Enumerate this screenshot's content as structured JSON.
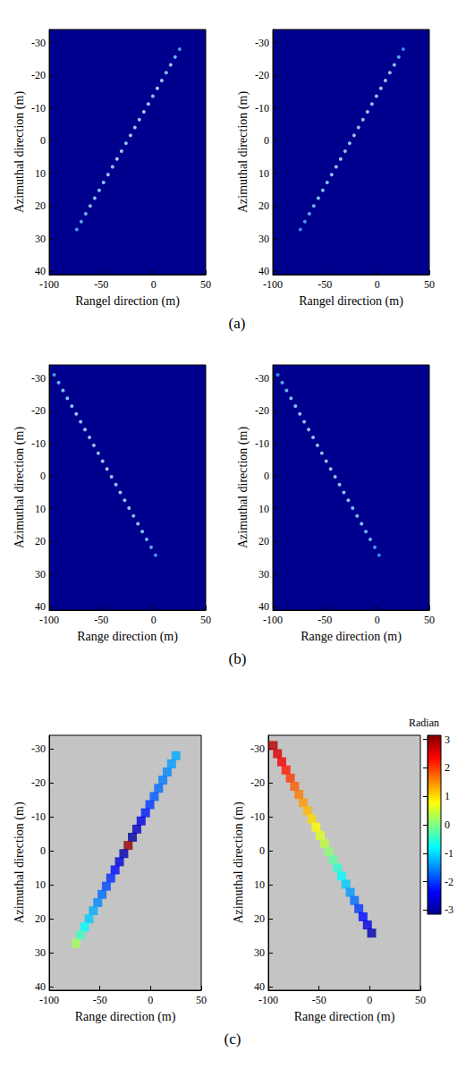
{
  "chart_data": [
    {
      "type": "scatter",
      "label": "(a)",
      "panels": [
        {
          "type": "scatter",
          "xlabel": "Rangel direction (m)",
          "ylabel": "Azimuthal direction (m)",
          "xlim": [
            -100,
            50
          ],
          "xticks": [
            -100,
            -50,
            0,
            50
          ],
          "ylim": [
            -34,
            41
          ],
          "yticks": [
            -30,
            -20,
            -10,
            0,
            10,
            20,
            30,
            40
          ],
          "zlim": [
            0,
            1
          ],
          "points": [
            [
              25,
              -28,
              0.6
            ],
            [
              20.7,
              -25.6,
              0.7
            ],
            [
              16.4,
              -23.2,
              0.8
            ],
            [
              12.1,
              -20.8,
              0.75
            ],
            [
              7.9,
              -18.4,
              0.85
            ],
            [
              3.6,
              -16,
              0.9
            ],
            [
              -0.7,
              -13.6,
              0.8
            ],
            [
              -5,
              -11.2,
              0.85
            ],
            [
              -9.3,
              -8.8,
              0.9
            ],
            [
              -13.6,
              -6.4,
              0.8
            ],
            [
              -17.9,
              -4,
              0.85
            ],
            [
              -22.1,
              -1.6,
              0.9
            ],
            [
              -26.4,
              0.8,
              0.8
            ],
            [
              -30.7,
              3.2,
              0.85
            ],
            [
              -35,
              5.6,
              0.9
            ],
            [
              -39.3,
              8,
              0.8
            ],
            [
              -43.6,
              10.4,
              0.85
            ],
            [
              -47.9,
              12.8,
              0.8
            ],
            [
              -52.1,
              15.2,
              0.75
            ],
            [
              -56.4,
              17.6,
              0.8
            ],
            [
              -60.7,
              20,
              0.75
            ],
            [
              -65,
              22.4,
              0.7
            ],
            [
              -69.3,
              24.8,
              0.65
            ],
            [
              -73.6,
              27.2,
              0.6
            ]
          ]
        },
        {
          "type": "scatter",
          "xlabel": "Rangel direction (m)",
          "ylabel": "Azimuthal direction (m)",
          "xlim": [
            -100,
            50
          ],
          "xticks": [
            -100,
            -50,
            0,
            50
          ],
          "ylim": [
            -34,
            41
          ],
          "yticks": [
            -30,
            -20,
            -10,
            0,
            10,
            20,
            30,
            40
          ],
          "zlim": [
            0,
            1
          ],
          "points": [
            [
              25,
              -28,
              0.55
            ],
            [
              20.7,
              -25.6,
              0.65
            ],
            [
              16.4,
              -23.2,
              0.75
            ],
            [
              12.1,
              -20.8,
              0.8
            ],
            [
              7.9,
              -18.4,
              0.8
            ],
            [
              3.6,
              -16,
              0.85
            ],
            [
              -0.7,
              -13.6,
              0.8
            ],
            [
              -5,
              -11.2,
              0.8
            ],
            [
              -9.3,
              -8.8,
              0.85
            ],
            [
              -13.6,
              -6.4,
              0.8
            ],
            [
              -17.9,
              -4,
              0.8
            ],
            [
              -22.1,
              -1.6,
              0.85
            ],
            [
              -26.4,
              0.8,
              0.8
            ],
            [
              -30.7,
              3.2,
              0.8
            ],
            [
              -35,
              5.6,
              0.85
            ],
            [
              -39.3,
              8,
              0.8
            ],
            [
              -43.6,
              10.4,
              0.8
            ],
            [
              -47.9,
              12.8,
              0.75
            ],
            [
              -52.1,
              15.2,
              0.75
            ],
            [
              -56.4,
              17.6,
              0.75
            ],
            [
              -60.7,
              20,
              0.7
            ],
            [
              -65,
              22.4,
              0.65
            ],
            [
              -69.3,
              24.8,
              0.6
            ],
            [
              -73.6,
              27.2,
              0.55
            ]
          ]
        }
      ]
    },
    {
      "type": "scatter",
      "label": "(b)",
      "panels": [
        {
          "type": "scatter",
          "xlabel": "Range direction (m)",
          "ylabel": "Azimuthal direction (m)",
          "xlim": [
            -100,
            50
          ],
          "xticks": [
            -100,
            -50,
            0,
            50
          ],
          "ylim": [
            -34,
            41
          ],
          "yticks": [
            -30,
            -20,
            -10,
            0,
            10,
            20,
            30,
            40
          ],
          "zlim": [
            0,
            1
          ],
          "points": [
            [
              -95.2,
              -31,
              0.6
            ],
            [
              -91,
              -28.6,
              0.7
            ],
            [
              -86.8,
              -26.2,
              0.75
            ],
            [
              -82.6,
              -23.8,
              0.8
            ],
            [
              -78.3,
              -21.4,
              0.8
            ],
            [
              -74.1,
              -19,
              0.85
            ],
            [
              -69.9,
              -16.6,
              0.8
            ],
            [
              -65.7,
              -14.2,
              0.85
            ],
            [
              -61.4,
              -11.8,
              0.8
            ],
            [
              -57.2,
              -9.4,
              0.85
            ],
            [
              -53,
              -7,
              0.8
            ],
            [
              -48.8,
              -4.6,
              0.85
            ],
            [
              -44.6,
              -2.2,
              0.9
            ],
            [
              -40.3,
              0.2,
              0.85
            ],
            [
              -36.1,
              2.6,
              0.8
            ],
            [
              -31.9,
              5,
              0.85
            ],
            [
              -27.7,
              7.4,
              0.8
            ],
            [
              -23.5,
              9.8,
              0.8
            ],
            [
              -19.2,
              12.2,
              0.75
            ],
            [
              -15,
              14.6,
              0.8
            ],
            [
              -10.8,
              17,
              0.75
            ],
            [
              -6.6,
              19.4,
              0.7
            ],
            [
              -2.3,
              21.8,
              0.65
            ],
            [
              1.9,
              24.2,
              0.6
            ]
          ]
        },
        {
          "type": "scatter",
          "xlabel": "Range direction (m)",
          "ylabel": "Azimuthal direction (m)",
          "xlim": [
            -100,
            50
          ],
          "xticks": [
            -100,
            -50,
            0,
            50
          ],
          "ylim": [
            -34,
            41
          ],
          "yticks": [
            -30,
            -20,
            -10,
            0,
            10,
            20,
            30,
            40
          ],
          "zlim": [
            0,
            1
          ],
          "points": [
            [
              -95.2,
              -31,
              0.55
            ],
            [
              -91,
              -28.6,
              0.65
            ],
            [
              -86.8,
              -26.2,
              0.7
            ],
            [
              -82.6,
              -23.8,
              0.75
            ],
            [
              -78.3,
              -21.4,
              0.8
            ],
            [
              -74.1,
              -19,
              0.8
            ],
            [
              -69.9,
              -16.6,
              0.8
            ],
            [
              -65.7,
              -14.2,
              0.8
            ],
            [
              -61.4,
              -11.8,
              0.8
            ],
            [
              -57.2,
              -9.4,
              0.8
            ],
            [
              -53,
              -7,
              0.8
            ],
            [
              -48.8,
              -4.6,
              0.8
            ],
            [
              -44.6,
              -2.2,
              0.85
            ],
            [
              -40.3,
              0.2,
              0.8
            ],
            [
              -36.1,
              2.6,
              0.8
            ],
            [
              -31.9,
              5,
              0.8
            ],
            [
              -27.7,
              7.4,
              0.8
            ],
            [
              -23.5,
              9.8,
              0.75
            ],
            [
              -19.2,
              12.2,
              0.75
            ],
            [
              -15,
              14.6,
              0.75
            ],
            [
              -10.8,
              17,
              0.7
            ],
            [
              -6.6,
              19.4,
              0.7
            ],
            [
              -2.3,
              21.8,
              0.6
            ],
            [
              1.9,
              24.2,
              0.55
            ]
          ]
        }
      ]
    },
    {
      "type": "scatter",
      "label": "(c)",
      "panels": [
        {
          "type": "scatter",
          "color": "jet",
          "xlabel": "Range direction (m)",
          "ylabel": "Azimuthal direction (m)",
          "xlim": [
            -100,
            50
          ],
          "xticks": [
            -100,
            -50,
            0,
            50
          ],
          "ylim": [
            -34,
            41
          ],
          "yticks": [
            -30,
            -20,
            -10,
            0,
            10,
            20,
            30,
            40
          ],
          "zlim": [
            -3.1416,
            3.1416
          ],
          "points": [
            [
              25,
              -28,
              -1.3
            ],
            [
              20.7,
              -25.6,
              -1.4
            ],
            [
              16.4,
              -23.2,
              -1.5
            ],
            [
              12.1,
              -20.8,
              -1.6
            ],
            [
              7.9,
              -18.4,
              -1.7
            ],
            [
              3.6,
              -16,
              -1.8
            ],
            [
              -0.7,
              -13.6,
              -2.0
            ],
            [
              -5,
              -11.2,
              -2.2
            ],
            [
              -9.3,
              -8.8,
              -2.5
            ],
            [
              -13.6,
              -6.4,
              -2.8
            ],
            [
              -17.9,
              -4,
              -3.0
            ],
            [
              -22.1,
              -1.6,
              3.0
            ],
            [
              -26.4,
              0.8,
              -2.9
            ],
            [
              -30.7,
              3.2,
              -2.6
            ],
            [
              -35,
              5.6,
              -2.3
            ],
            [
              -39.3,
              8,
              -2.1
            ],
            [
              -43.6,
              10.4,
              -1.9
            ],
            [
              -47.9,
              12.8,
              -1.7
            ],
            [
              -52.1,
              15.2,
              -1.5
            ],
            [
              -56.4,
              17.6,
              -1.3
            ],
            [
              -60.7,
              20,
              -1.1
            ],
            [
              -65,
              22.4,
              -0.8
            ],
            [
              -69.3,
              24.8,
              -0.4
            ],
            [
              -73.6,
              27.2,
              0.2
            ]
          ]
        },
        {
          "type": "scatter",
          "color": "jet",
          "xlabel": "Range direction (m)",
          "ylabel": "Azimuthal direction (m)",
          "xlim": [
            -100,
            50
          ],
          "xticks": [
            -100,
            -50,
            0,
            50
          ],
          "ylim": [
            -34,
            41
          ],
          "yticks": [
            -30,
            -20,
            -10,
            0,
            10,
            20,
            30,
            40
          ],
          "zlim": [
            -3.1416,
            3.1416
          ],
          "points": [
            [
              -95.2,
              -31,
              2.8
            ],
            [
              -91,
              -28.6,
              2.6
            ],
            [
              -86.8,
              -26.2,
              2.4
            ],
            [
              -82.6,
              -23.8,
              2.2
            ],
            [
              -78.3,
              -21.4,
              2.0
            ],
            [
              -74.1,
              -19,
              1.8
            ],
            [
              -69.9,
              -16.6,
              1.6
            ],
            [
              -65.7,
              -14.2,
              1.4
            ],
            [
              -61.4,
              -11.8,
              1.2
            ],
            [
              -57.2,
              -9.4,
              1.0
            ],
            [
              -53,
              -7,
              0.8
            ],
            [
              -48.8,
              -4.6,
              0.6
            ],
            [
              -44.6,
              -2.2,
              0.4
            ],
            [
              -40.3,
              0.2,
              0.1
            ],
            [
              -36.1,
              2.6,
              -0.2
            ],
            [
              -31.9,
              5,
              -0.5
            ],
            [
              -27.7,
              7.4,
              -0.8
            ],
            [
              -23.5,
              9.8,
              -1.1
            ],
            [
              -19.2,
              12.2,
              -1.4
            ],
            [
              -15,
              14.6,
              -1.7
            ],
            [
              -10.8,
              17,
              -2.0
            ],
            [
              -6.6,
              19.4,
              -2.3
            ],
            [
              -2.3,
              21.8,
              -2.6
            ],
            [
              1.9,
              24.2,
              -2.9
            ]
          ]
        }
      ]
    }
  ],
  "colorbar": {
    "label": "Radian",
    "range": [
      -3.1416,
      3.1416
    ],
    "ticks": [
      -3,
      -2,
      -1,
      0,
      1,
      2,
      3
    ]
  }
}
